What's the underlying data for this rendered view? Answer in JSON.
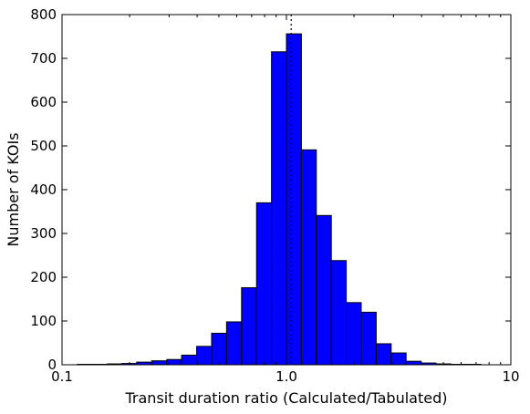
{
  "chart_data": {
    "type": "bar",
    "title": "",
    "xlabel": "Transit duration ratio (Calculated/Tabulated)",
    "ylabel": "Number of KOIs",
    "x_scale": "log",
    "xlim": [
      0.1,
      10
    ],
    "ylim": [
      0,
      800
    ],
    "x_ticks": [
      "0.1",
      "1.0",
      "10"
    ],
    "y_ticks": [
      "0",
      "100",
      "200",
      "300",
      "400",
      "500",
      "600",
      "700",
      "800"
    ],
    "bar_color": "#0000ff",
    "bins": [
      {
        "x0": 0.1,
        "x1": 0.117,
        "count": 0
      },
      {
        "x0": 0.117,
        "x1": 0.136,
        "count": 1
      },
      {
        "x0": 0.136,
        "x1": 0.159,
        "count": 1
      },
      {
        "x0": 0.159,
        "x1": 0.185,
        "count": 2
      },
      {
        "x0": 0.185,
        "x1": 0.215,
        "count": 3
      },
      {
        "x0": 0.215,
        "x1": 0.251,
        "count": 6
      },
      {
        "x0": 0.251,
        "x1": 0.293,
        "count": 9
      },
      {
        "x0": 0.293,
        "x1": 0.341,
        "count": 12
      },
      {
        "x0": 0.341,
        "x1": 0.398,
        "count": 22
      },
      {
        "x0": 0.398,
        "x1": 0.464,
        "count": 42
      },
      {
        "x0": 0.464,
        "x1": 0.541,
        "count": 72
      },
      {
        "x0": 0.541,
        "x1": 0.631,
        "count": 98
      },
      {
        "x0": 0.631,
        "x1": 0.736,
        "count": 176
      },
      {
        "x0": 0.736,
        "x1": 0.858,
        "count": 370
      },
      {
        "x0": 0.858,
        "x1": 1.0,
        "count": 715
      },
      {
        "x0": 1.0,
        "x1": 1.166,
        "count": 756
      },
      {
        "x0": 1.166,
        "x1": 1.359,
        "count": 491
      },
      {
        "x0": 1.359,
        "x1": 1.585,
        "count": 341
      },
      {
        "x0": 1.585,
        "x1": 1.848,
        "count": 238
      },
      {
        "x0": 1.848,
        "x1": 2.154,
        "count": 142
      },
      {
        "x0": 2.154,
        "x1": 2.512,
        "count": 120
      },
      {
        "x0": 2.512,
        "x1": 2.929,
        "count": 48
      },
      {
        "x0": 2.929,
        "x1": 3.415,
        "count": 27
      },
      {
        "x0": 3.415,
        "x1": 3.981,
        "count": 8
      },
      {
        "x0": 3.981,
        "x1": 4.642,
        "count": 4
      },
      {
        "x0": 4.642,
        "x1": 5.412,
        "count": 2
      },
      {
        "x0": 5.412,
        "x1": 6.31,
        "count": 1
      },
      {
        "x0": 6.31,
        "x1": 7.356,
        "count": 1
      },
      {
        "x0": 7.356,
        "x1": 8.577,
        "count": 0
      },
      {
        "x0": 8.577,
        "x1": 10.0,
        "count": 0
      }
    ],
    "reference_line_x": 1.05,
    "grid": false,
    "legend": "none"
  }
}
